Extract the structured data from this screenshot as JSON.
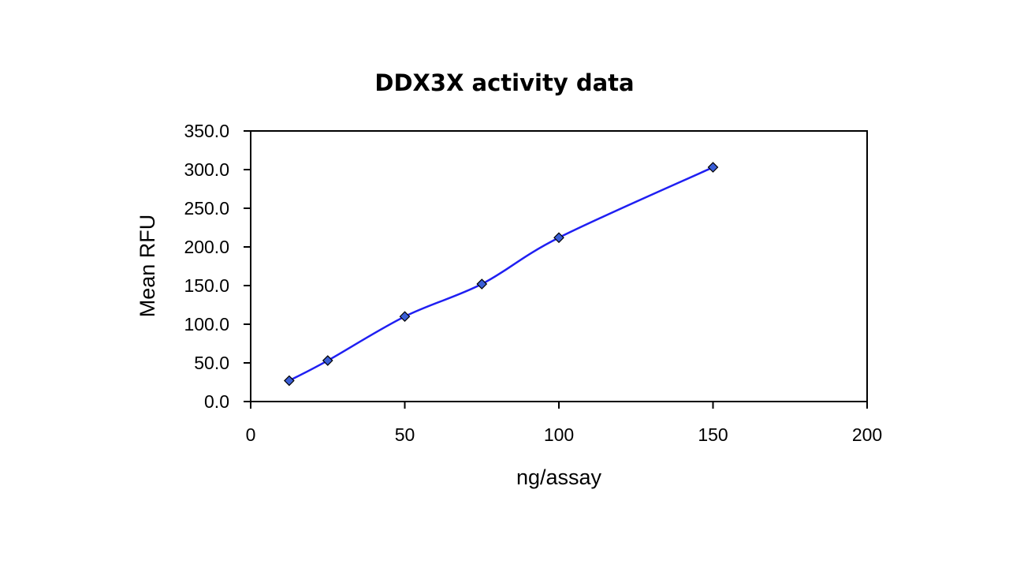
{
  "chart_data": {
    "type": "line",
    "title": "DDX3X activity data",
    "xlabel": "ng/assay",
    "ylabel": "Mean RFU",
    "xlim": [
      0,
      200
    ],
    "ylim": [
      0,
      350
    ],
    "x_ticks": [
      0,
      50,
      100,
      150,
      200
    ],
    "y_ticks": [
      0,
      50,
      100,
      150,
      200,
      250,
      300,
      350
    ],
    "x_tick_labels": [
      "0",
      "50",
      "100",
      "150",
      "200"
    ],
    "y_tick_labels": [
      "0.0",
      "50.0",
      "100.0",
      "150.0",
      "200.0",
      "250.0",
      "300.0",
      "350.0"
    ],
    "grid": false,
    "legend": "none",
    "series": [
      {
        "x": [
          12.5,
          25,
          50,
          75,
          100,
          150
        ],
        "y": [
          27,
          53,
          110,
          152,
          212,
          303
        ],
        "color": "#1f1ff2",
        "marker_color": "#3a5ed6",
        "marker": "diamond",
        "smooth": true
      }
    ]
  }
}
